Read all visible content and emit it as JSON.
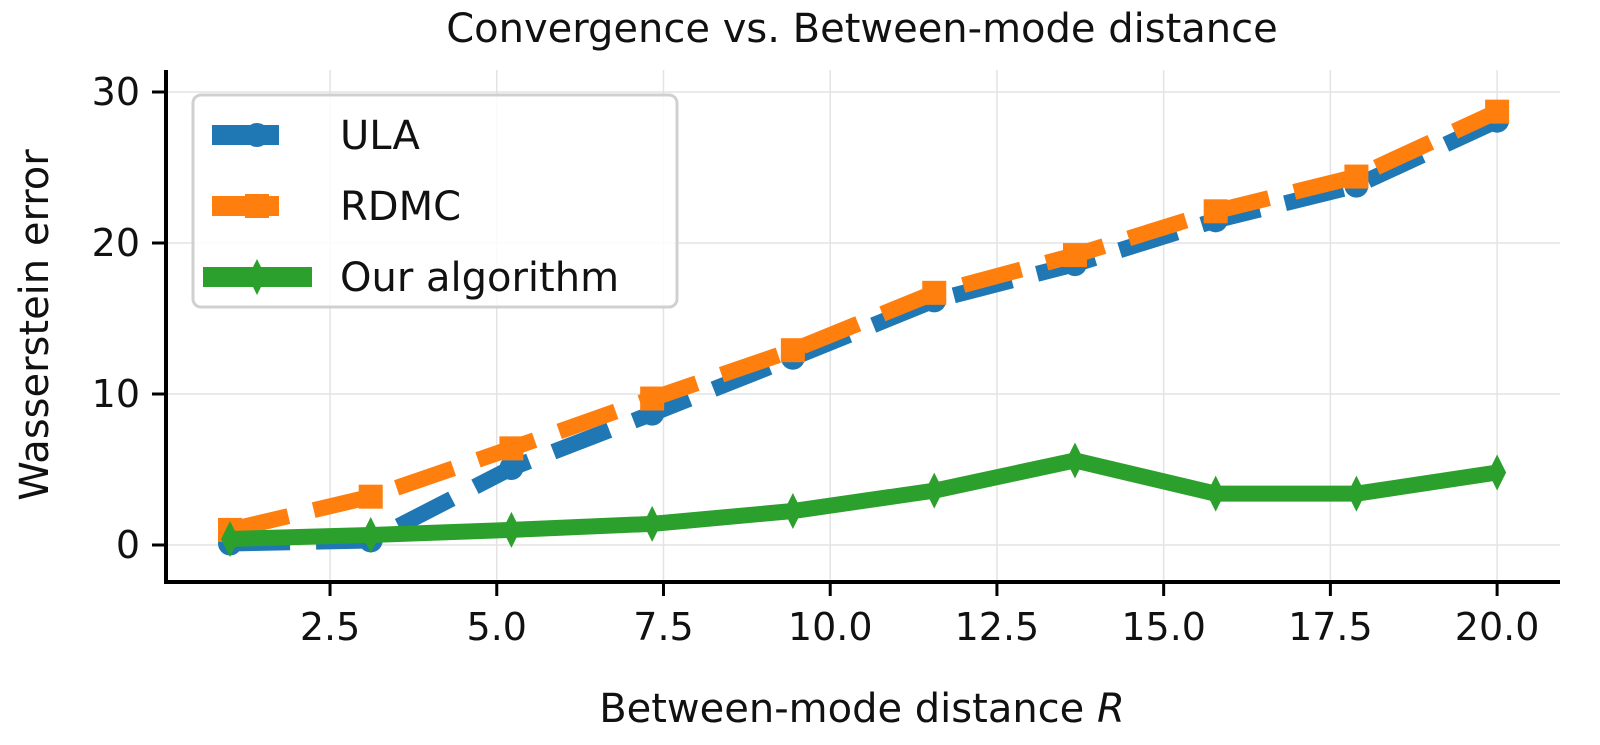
{
  "chart_data": {
    "type": "line",
    "title": "Convergence vs. Between-mode distance",
    "xlabel": "Between-mode distance ",
    "xlabel_italic": "R",
    "ylabel": "Wasserstein error",
    "xlim": [
      0.05,
      20.95
    ],
    "ylim": [
      -2.5,
      31.5
    ],
    "xticks": [
      2.5,
      5.0,
      7.5,
      10.0,
      12.5,
      15.0,
      17.5,
      20.0
    ],
    "xtick_labels": [
      "2.5",
      "5.0",
      "7.5",
      "10.0",
      "12.5",
      "15.0",
      "17.5",
      "20.0"
    ],
    "yticks": [
      0,
      10,
      20,
      30
    ],
    "ytick_labels": [
      "0",
      "10",
      "20",
      "30"
    ],
    "grid": true,
    "legend_position": "top-left",
    "x": [
      1.0,
      3.11,
      5.22,
      7.33,
      9.44,
      11.56,
      13.67,
      15.78,
      17.89,
      20.0
    ],
    "series": [
      {
        "name": "ULA",
        "color": "#1f77b4",
        "marker": "circle",
        "dashed": true,
        "values": [
          0.1,
          0.3,
          5.1,
          8.7,
          12.4,
          16.2,
          18.6,
          21.5,
          23.8,
          28.1
        ]
      },
      {
        "name": "RDMC",
        "color": "#ff7f0e",
        "marker": "square",
        "dashed": true,
        "values": [
          1.0,
          3.2,
          6.4,
          9.7,
          12.9,
          16.7,
          19.2,
          22.1,
          24.4,
          28.7
        ]
      },
      {
        "name": "Our algorithm",
        "color": "#2ca02c",
        "marker": "diamond",
        "dashed": false,
        "values": [
          0.4,
          0.66,
          1.0,
          1.4,
          2.25,
          3.6,
          5.6,
          3.4,
          3.4,
          4.8
        ]
      }
    ]
  }
}
